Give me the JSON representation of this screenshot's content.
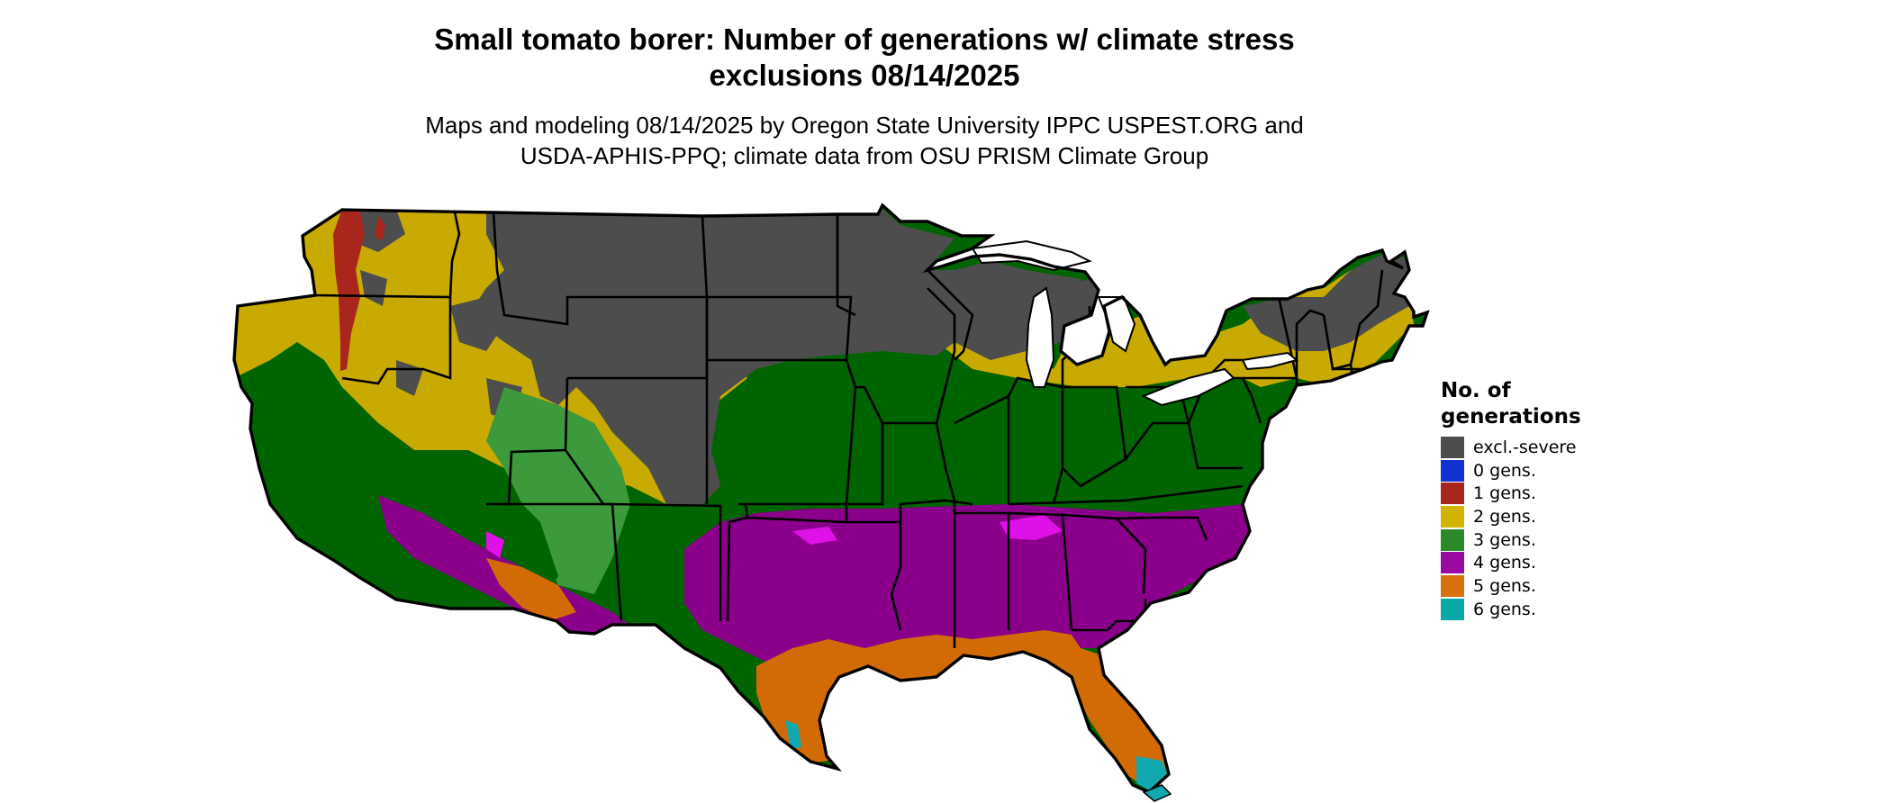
{
  "title": "Small tomato borer: Number of generations w/ climate stress exclusions 08/14/2025",
  "title_line1": "Small tomato borer: Number of generations w/ climate stress",
  "title_line2": "exclusions 08/14/2025",
  "subtitle_line1": "Maps and modeling 08/14/2025 by Oregon State University IPPC USPEST.ORG and",
  "subtitle_line2": "USDA-APHIS-PPQ; climate data from OSU PRISM Climate Group",
  "legend": {
    "title_line1": "No. of",
    "title_line2": "generations",
    "items": [
      {
        "label": "excl.-severe",
        "color": "#4d4d4d"
      },
      {
        "label": "0 gens.",
        "color": "#1432d2"
      },
      {
        "label": "1 gens.",
        "color": "#a8261c"
      },
      {
        "label": "2 gens.",
        "color": "#d2b400"
      },
      {
        "label": "3 gens.",
        "color": "#2a8a2a"
      },
      {
        "label": "4 gens.",
        "color": "#9a0aa0"
      },
      {
        "label": "5 gens.",
        "color": "#d8700c"
      },
      {
        "label": "6 gens.",
        "color": "#0aa8a8"
      }
    ]
  },
  "map_colors": {
    "excl": "#4d4d4d",
    "gen1": "#a8261c",
    "gen2": "#c8aa00",
    "gen3": "#006400",
    "gen3_light": "#3c9a3c",
    "gen4": "#8a008a",
    "gen4_bright": "#e010e8",
    "gen5": "#d26b05",
    "gen6": "#12a8b0"
  }
}
